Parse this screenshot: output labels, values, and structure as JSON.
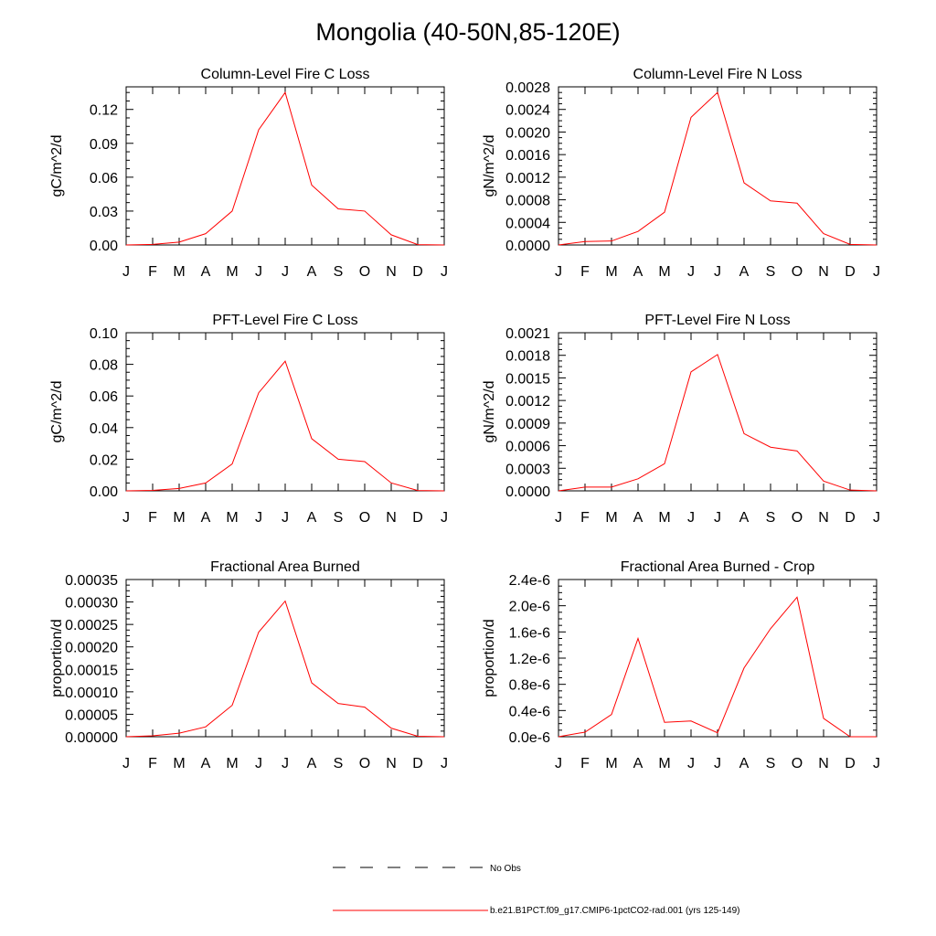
{
  "title": "Mongolia (40-50N,85-120E)",
  "legend": {
    "entries": [
      {
        "label": "No Obs",
        "color": "#000000",
        "style": "dashed"
      },
      {
        "label": "b.e21.B1PCT.f09_g17.CMIP6-1pctCO2-rad.001 (yrs 125-149)",
        "color": "#ff0000",
        "style": "solid"
      }
    ]
  },
  "chart_data": [
    {
      "type": "line",
      "title": "Column-Level Fire C Loss",
      "ylabel": "gC/m^2/d",
      "x": [
        "J",
        "F",
        "M",
        "A",
        "M",
        "J",
        "J",
        "A",
        "S",
        "O",
        "N",
        "D",
        "J"
      ],
      "ylim": [
        0,
        0.14
      ],
      "yticks": [
        "0.00",
        "0.03",
        "0.06",
        "0.09",
        "0.12"
      ],
      "series": [
        {
          "color": "#ff0000",
          "values": [
            0.0,
            0.0005,
            0.0025,
            0.01,
            0.03,
            0.102,
            0.135,
            0.053,
            0.032,
            0.03,
            0.009,
            0.0003,
            0.0
          ]
        }
      ]
    },
    {
      "type": "line",
      "title": "Column-Level Fire N Loss",
      "ylabel": "gN/m^2/d",
      "x": [
        "J",
        "F",
        "M",
        "A",
        "M",
        "J",
        "J",
        "A",
        "S",
        "O",
        "N",
        "D",
        "J"
      ],
      "ylim": [
        0,
        0.0028
      ],
      "yticks": [
        "0.0000",
        "0.0004",
        "0.0008",
        "0.0012",
        "0.0016",
        "0.0020",
        "0.0024",
        "0.0028"
      ],
      "series": [
        {
          "color": "#ff0000",
          "values": [
            0.0,
            6e-05,
            7e-05,
            0.00024,
            0.00058,
            0.00226,
            0.0027,
            0.0011,
            0.00078,
            0.00074,
            0.0002,
            1e-05,
            0.0
          ]
        }
      ]
    },
    {
      "type": "line",
      "title": "PFT-Level Fire C Loss",
      "ylabel": "gC/m^2/d",
      "x": [
        "J",
        "F",
        "M",
        "A",
        "M",
        "J",
        "J",
        "A",
        "S",
        "O",
        "N",
        "D",
        "J"
      ],
      "ylim": [
        0,
        0.1
      ],
      "yticks": [
        "0.00",
        "0.02",
        "0.04",
        "0.06",
        "0.08",
        "0.10"
      ],
      "series": [
        {
          "color": "#ff0000",
          "values": [
            0.0,
            0.0003,
            0.0015,
            0.005,
            0.017,
            0.062,
            0.082,
            0.033,
            0.02,
            0.0185,
            0.005,
            0.0002,
            0.0
          ]
        }
      ]
    },
    {
      "type": "line",
      "title": "PFT-Level Fire N Loss",
      "ylabel": "gN/m^2/d",
      "x": [
        "J",
        "F",
        "M",
        "A",
        "M",
        "J",
        "J",
        "A",
        "S",
        "O",
        "N",
        "D",
        "J"
      ],
      "ylim": [
        0,
        0.0021
      ],
      "yticks": [
        "0.0000",
        "0.0003",
        "0.0006",
        "0.0009",
        "0.0012",
        "0.0015",
        "0.0018",
        "0.0021"
      ],
      "series": [
        {
          "color": "#ff0000",
          "values": [
            0.0,
            5e-05,
            5e-05,
            0.00016,
            0.00036,
            0.00158,
            0.00181,
            0.00076,
            0.00058,
            0.00053,
            0.00013,
            1e-05,
            0.0
          ]
        }
      ]
    },
    {
      "type": "line",
      "title": "Fractional Area Burned",
      "ylabel": "proportion/d",
      "x": [
        "J",
        "F",
        "M",
        "A",
        "M",
        "J",
        "J",
        "A",
        "S",
        "O",
        "N",
        "D",
        "J"
      ],
      "ylim": [
        0,
        0.00035
      ],
      "yticks": [
        "0.00000",
        "0.00005",
        "0.00010",
        "0.00015",
        "0.00020",
        "0.00025",
        "0.00030",
        "0.00035"
      ],
      "series": [
        {
          "color": "#ff0000",
          "values": [
            0.0,
            2e-06,
            8e-06,
            2.2e-05,
            7e-05,
            0.000233,
            0.000302,
            0.00012,
            7.4e-05,
            6.6e-05,
            1.9e-05,
            1e-06,
            0.0
          ]
        }
      ]
    },
    {
      "type": "line",
      "title": "Fractional Area Burned - Crop",
      "ylabel": "proportion/d",
      "x": [
        "J",
        "F",
        "M",
        "A",
        "M",
        "J",
        "J",
        "A",
        "S",
        "O",
        "N",
        "D",
        "J"
      ],
      "ylim": [
        0,
        2.4e-06
      ],
      "yticks": [
        "0.0e-6",
        "0.4e-6",
        "0.8e-6",
        "1.2e-6",
        "1.6e-6",
        "2.0e-6",
        "2.4e-6"
      ],
      "series": [
        {
          "color": "#ff0000",
          "values": [
            0.0,
            7e-08,
            3.4e-07,
            1.5e-06,
            2.2e-07,
            2.4e-07,
            6e-08,
            1.05e-06,
            1.65e-06,
            2.13e-06,
            2.8e-07,
            0.0,
            0.0
          ]
        }
      ]
    }
  ]
}
